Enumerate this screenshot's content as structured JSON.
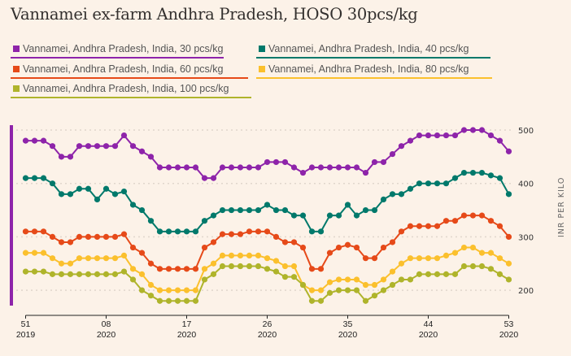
{
  "title": "Vannamei ex-farm Andhra Pradesh, HOSO 30pcs/kg",
  "chart_data": {
    "type": "line",
    "title": "Vannamei ex-farm Andhra Pradesh, HOSO 30pcs/kg",
    "xlabel": "",
    "ylabel": "INR PER KILO",
    "ylim": [
      200,
      500
    ],
    "yticks": [
      500,
      400,
      300,
      200
    ],
    "grid": true,
    "legend_position": "top",
    "x": [
      "2019-W51",
      "2019-W52",
      "2020-W01",
      "2020-W02",
      "2020-W03",
      "2020-W04",
      "2020-W05",
      "2020-W06",
      "2020-W07",
      "2020-W08",
      "2020-W09",
      "2020-W10",
      "2020-W11",
      "2020-W12",
      "2020-W13",
      "2020-W14",
      "2020-W15",
      "2020-W16",
      "2020-W17",
      "2020-W18",
      "2020-W19",
      "2020-W20",
      "2020-W21",
      "2020-W22",
      "2020-W23",
      "2020-W24",
      "2020-W25",
      "2020-W26",
      "2020-W27",
      "2020-W28",
      "2020-W29",
      "2020-W30",
      "2020-W31",
      "2020-W32",
      "2020-W33",
      "2020-W34",
      "2020-W35",
      "2020-W36",
      "2020-W37",
      "2020-W38",
      "2020-W39",
      "2020-W40",
      "2020-W41",
      "2020-W42",
      "2020-W43",
      "2020-W44",
      "2020-W45",
      "2020-W46",
      "2020-W47",
      "2020-W48",
      "2020-W49",
      "2020-W50",
      "2020-W51",
      "2020-W52",
      "2020-W53"
    ],
    "xticks": [
      {
        "week": "51",
        "year": "2019",
        "index": 0
      },
      {
        "week": "08",
        "year": "2020",
        "index": 9
      },
      {
        "week": "17",
        "year": "2020",
        "index": 18
      },
      {
        "week": "26",
        "year": "2020",
        "index": 27
      },
      {
        "week": "35",
        "year": "2020",
        "index": 36
      },
      {
        "week": "44",
        "year": "2020",
        "index": 45
      },
      {
        "week": "53",
        "year": "2020",
        "index": 54
      }
    ],
    "series": [
      {
        "name": "Vannamei, Andhra Pradesh, India, 30 pcs/kg",
        "color": "#8e24aa",
        "values": [
          480,
          480,
          480,
          470,
          450,
          450,
          470,
          470,
          470,
          470,
          470,
          490,
          470,
          460,
          450,
          430,
          430,
          430,
          430,
          430,
          410,
          410,
          430,
          430,
          430,
          430,
          430,
          440,
          440,
          440,
          430,
          420,
          430,
          430,
          430,
          430,
          430,
          430,
          420,
          440,
          440,
          455,
          470,
          480,
          490,
          490,
          490,
          490,
          490,
          500,
          500,
          500,
          490,
          480,
          460
        ]
      },
      {
        "name": "Vannamei, Andhra Pradesh, India, 40 pcs/kg",
        "color": "#00796b",
        "values": [
          410,
          410,
          410,
          400,
          380,
          380,
          390,
          390,
          370,
          390,
          380,
          385,
          360,
          350,
          330,
          310,
          310,
          310,
          310,
          310,
          330,
          340,
          350,
          350,
          350,
          350,
          350,
          360,
          350,
          350,
          340,
          340,
          310,
          310,
          340,
          340,
          360,
          340,
          350,
          350,
          370,
          380,
          380,
          390,
          400,
          400,
          400,
          400,
          410,
          420,
          420,
          420,
          415,
          410,
          380
        ]
      },
      {
        "name": "Vannamei, Andhra Pradesh, India, 60 pcs/kg",
        "color": "#e64a19",
        "values": [
          310,
          310,
          310,
          300,
          290,
          290,
          300,
          300,
          300,
          300,
          300,
          305,
          280,
          270,
          250,
          240,
          240,
          240,
          240,
          240,
          280,
          290,
          305,
          305,
          305,
          310,
          310,
          310,
          300,
          290,
          290,
          280,
          240,
          240,
          270,
          280,
          285,
          280,
          260,
          260,
          280,
          290,
          310,
          320,
          320,
          320,
          320,
          330,
          330,
          340,
          340,
          340,
          330,
          320,
          300
        ]
      },
      {
        "name": "Vannamei, Andhra Pradesh, India, 80 pcs/kg",
        "color": "#fbc02d",
        "values": [
          270,
          270,
          270,
          260,
          250,
          250,
          260,
          260,
          260,
          260,
          260,
          265,
          240,
          230,
          210,
          200,
          200,
          200,
          200,
          200,
          240,
          250,
          265,
          265,
          265,
          265,
          265,
          260,
          255,
          245,
          245,
          210,
          200,
          200,
          215,
          220,
          220,
          220,
          210,
          210,
          220,
          235,
          250,
          260,
          260,
          260,
          260,
          265,
          270,
          280,
          280,
          270,
          270,
          260,
          250
        ]
      },
      {
        "name": "Vannamei, Andhra Pradesh, India, 100 pcs/kg",
        "color": "#afb42b",
        "values": [
          235,
          235,
          235,
          230,
          230,
          230,
          230,
          230,
          230,
          230,
          230,
          235,
          220,
          200,
          190,
          180,
          180,
          180,
          180,
          180,
          220,
          230,
          245,
          245,
          245,
          245,
          245,
          240,
          235,
          225,
          225,
          210,
          180,
          180,
          195,
          200,
          200,
          200,
          180,
          190,
          200,
          210,
          220,
          220,
          230,
          230,
          230,
          230,
          230,
          245,
          245,
          245,
          240,
          230,
          220
        ]
      }
    ]
  }
}
